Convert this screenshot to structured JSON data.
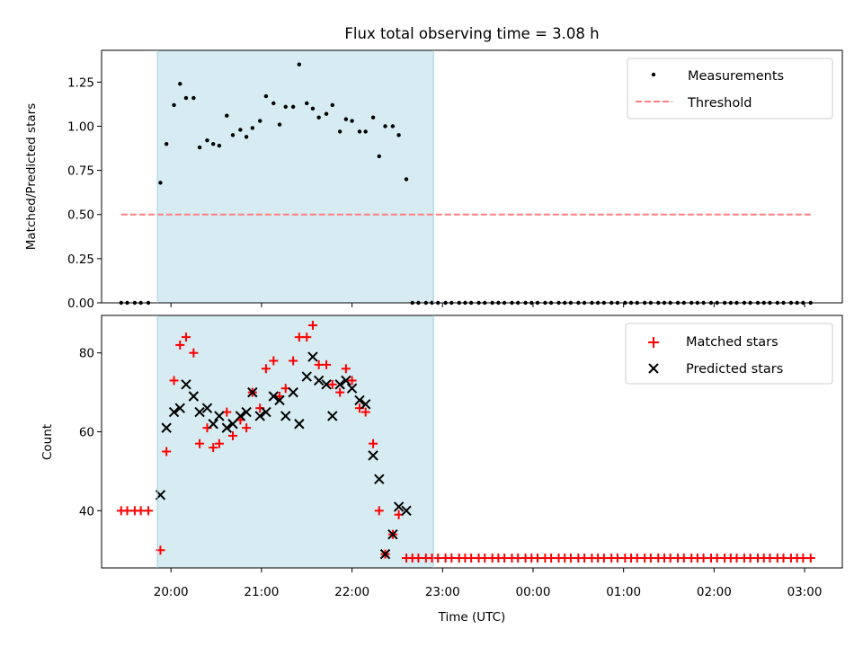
{
  "chart_data": [
    {
      "type": "scatter",
      "title": "Flux total observing time = 3.08 h",
      "ylabel": "Matched/Predicted stars",
      "xlabel": "",
      "ylim": [
        0.0,
        1.43
      ],
      "yticks": [
        0.0,
        0.25,
        0.5,
        0.75,
        1.0,
        1.25
      ],
      "ytick_labels": [
        "0.00",
        "0.25",
        "0.50",
        "0.75",
        "1.00",
        "1.25"
      ],
      "xticks": [
        "20:00",
        "21:00",
        "22:00",
        "23:00",
        "00:00",
        "01:00",
        "02:00",
        "03:00"
      ],
      "xlim": [
        "19:14",
        "03:25"
      ],
      "shaded_span": {
        "start": "19:51",
        "end": "22:54",
        "color": "#add8e6"
      },
      "legend": {
        "position": "top-right",
        "entries": [
          "Measurements",
          "Threshold"
        ]
      },
      "series": [
        {
          "name": "Measurements",
          "marker": "dot",
          "color": "#000000",
          "points": [
            [
              "19:27",
              0.0
            ],
            [
              "19:31",
              0.0
            ],
            [
              "19:36",
              0.0
            ],
            [
              "19:40",
              0.0
            ],
            [
              "19:45",
              0.0
            ],
            [
              "19:53",
              0.68
            ],
            [
              "19:57",
              0.9
            ],
            [
              "20:02",
              1.12
            ],
            [
              "20:06",
              1.24
            ],
            [
              "20:10",
              1.16
            ],
            [
              "20:15",
              1.16
            ],
            [
              "20:19",
              0.88
            ],
            [
              "20:24",
              0.92
            ],
            [
              "20:28",
              0.9
            ],
            [
              "20:32",
              0.89
            ],
            [
              "20:37",
              1.06
            ],
            [
              "20:41",
              0.95
            ],
            [
              "20:46",
              0.98
            ],
            [
              "20:50",
              0.94
            ],
            [
              "20:54",
              0.99
            ],
            [
              "20:59",
              1.03
            ],
            [
              "21:03",
              1.17
            ],
            [
              "21:08",
              1.13
            ],
            [
              "21:12",
              1.01
            ],
            [
              "21:16",
              1.11
            ],
            [
              "21:21",
              1.11
            ],
            [
              "21:25",
              1.35
            ],
            [
              "21:30",
              1.13
            ],
            [
              "21:34",
              1.1
            ],
            [
              "21:38",
              1.05
            ],
            [
              "21:43",
              1.07
            ],
            [
              "21:47",
              1.12
            ],
            [
              "21:52",
              0.97
            ],
            [
              "21:56",
              1.04
            ],
            [
              "22:00",
              1.03
            ],
            [
              "22:05",
              0.97
            ],
            [
              "22:09",
              0.97
            ],
            [
              "22:14",
              1.05
            ],
            [
              "22:18",
              0.83
            ],
            [
              "22:22",
              1.0
            ],
            [
              "22:27",
              1.0
            ],
            [
              "22:31",
              0.95
            ],
            [
              "22:36",
              0.7
            ],
            [
              "22:40",
              0.0
            ],
            [
              "22:44",
              0.0
            ],
            [
              "22:49",
              0.0
            ],
            [
              "22:53",
              0.0
            ],
            [
              "22:57",
              0.0
            ],
            [
              "23:02",
              0.0
            ],
            [
              "23:06",
              0.0
            ],
            [
              "23:11",
              0.0
            ],
            [
              "23:15",
              0.0
            ],
            [
              "23:19",
              0.0
            ],
            [
              "23:24",
              0.0
            ],
            [
              "23:28",
              0.0
            ],
            [
              "23:33",
              0.0
            ],
            [
              "23:37",
              0.0
            ],
            [
              "23:41",
              0.0
            ],
            [
              "23:46",
              0.0
            ],
            [
              "23:50",
              0.0
            ],
            [
              "23:55",
              0.0
            ],
            [
              "23:59",
              0.0
            ],
            [
              "00:03",
              0.0
            ],
            [
              "00:08",
              0.0
            ],
            [
              "00:12",
              0.0
            ],
            [
              "00:17",
              0.0
            ],
            [
              "00:21",
              0.0
            ],
            [
              "00:25",
              0.0
            ],
            [
              "00:30",
              0.0
            ],
            [
              "00:34",
              0.0
            ],
            [
              "00:39",
              0.0
            ],
            [
              "00:43",
              0.0
            ],
            [
              "00:47",
              0.0
            ],
            [
              "00:52",
              0.0
            ],
            [
              "00:56",
              0.0
            ],
            [
              "01:01",
              0.0
            ],
            [
              "01:05",
              0.0
            ],
            [
              "01:09",
              0.0
            ],
            [
              "01:14",
              0.0
            ],
            [
              "01:18",
              0.0
            ],
            [
              "01:23",
              0.0
            ],
            [
              "01:27",
              0.0
            ],
            [
              "01:31",
              0.0
            ],
            [
              "01:36",
              0.0
            ],
            [
              "01:40",
              0.0
            ],
            [
              "01:45",
              0.0
            ],
            [
              "01:49",
              0.0
            ],
            [
              "01:53",
              0.0
            ],
            [
              "01:58",
              0.0
            ],
            [
              "02:02",
              0.0
            ],
            [
              "02:07",
              0.0
            ],
            [
              "02:11",
              0.0
            ],
            [
              "02:15",
              0.0
            ],
            [
              "02:20",
              0.0
            ],
            [
              "02:24",
              0.0
            ],
            [
              "02:29",
              0.0
            ],
            [
              "02:33",
              0.0
            ],
            [
              "02:37",
              0.0
            ],
            [
              "02:42",
              0.0
            ],
            [
              "02:46",
              0.0
            ],
            [
              "02:51",
              0.0
            ],
            [
              "02:55",
              0.0
            ],
            [
              "02:59",
              0.0
            ],
            [
              "03:04",
              0.0
            ]
          ]
        },
        {
          "name": "Threshold",
          "marker": "dashed-line",
          "color": "#ff7f7f",
          "points": [
            [
              "19:27",
              0.5
            ],
            [
              "03:04",
              0.5
            ]
          ]
        }
      ]
    },
    {
      "type": "scatter",
      "title": "",
      "ylabel": "Count",
      "xlabel": "Time (UTC)",
      "ylim": [
        25.5,
        89.5
      ],
      "yticks": [
        40,
        60,
        80
      ],
      "ytick_labels": [
        "40",
        "60",
        "80"
      ],
      "xticks": [
        "20:00",
        "21:00",
        "22:00",
        "23:00",
        "00:00",
        "01:00",
        "02:00",
        "03:00"
      ],
      "xtick_labels": [
        "20:00",
        "21:00",
        "22:00",
        "23:00",
        "00:00",
        "01:00",
        "02:00",
        "03:00"
      ],
      "xlim": [
        "19:14",
        "03:25"
      ],
      "shaded_span": {
        "start": "19:51",
        "end": "22:54",
        "color": "#add8e6"
      },
      "legend": {
        "position": "top-right",
        "entries": [
          "Matched stars",
          "Predicted stars"
        ]
      },
      "series": [
        {
          "name": "Matched stars",
          "marker": "plus",
          "color": "#ff0000",
          "points": [
            [
              "19:27",
              40
            ],
            [
              "19:31",
              40
            ],
            [
              "19:36",
              40
            ],
            [
              "19:40",
              40
            ],
            [
              "19:45",
              40
            ],
            [
              "19:53",
              30
            ],
            [
              "19:57",
              55
            ],
            [
              "20:02",
              73
            ],
            [
              "20:06",
              82
            ],
            [
              "20:10",
              84
            ],
            [
              "20:15",
              80
            ],
            [
              "20:19",
              57
            ],
            [
              "20:24",
              61
            ],
            [
              "20:28",
              56
            ],
            [
              "20:32",
              57
            ],
            [
              "20:37",
              65
            ],
            [
              "20:41",
              59
            ],
            [
              "20:46",
              63
            ],
            [
              "20:50",
              61
            ],
            [
              "20:54",
              70
            ],
            [
              "20:59",
              66
            ],
            [
              "21:03",
              76
            ],
            [
              "21:08",
              78
            ],
            [
              "21:12",
              69
            ],
            [
              "21:16",
              71
            ],
            [
              "21:21",
              78
            ],
            [
              "21:25",
              84
            ],
            [
              "21:30",
              84
            ],
            [
              "21:34",
              87
            ],
            [
              "21:38",
              77
            ],
            [
              "21:43",
              77
            ],
            [
              "21:47",
              72
            ],
            [
              "21:52",
              70
            ],
            [
              "21:56",
              76
            ],
            [
              "22:00",
              73
            ],
            [
              "22:05",
              66
            ],
            [
              "22:09",
              65
            ],
            [
              "22:14",
              57
            ],
            [
              "22:18",
              40
            ],
            [
              "22:22",
              29
            ],
            [
              "22:27",
              34
            ],
            [
              "22:31",
              39
            ],
            [
              "22:36",
              28
            ],
            [
              "22:40",
              28
            ],
            [
              "22:44",
              28
            ],
            [
              "22:49",
              28
            ],
            [
              "22:53",
              28
            ],
            [
              "22:57",
              28
            ],
            [
              "23:02",
              28
            ],
            [
              "23:06",
              28
            ],
            [
              "23:11",
              28
            ],
            [
              "23:15",
              28
            ],
            [
              "23:19",
              28
            ],
            [
              "23:24",
              28
            ],
            [
              "23:28",
              28
            ],
            [
              "23:33",
              28
            ],
            [
              "23:37",
              28
            ],
            [
              "23:41",
              28
            ],
            [
              "23:46",
              28
            ],
            [
              "23:50",
              28
            ],
            [
              "23:55",
              28
            ],
            [
              "23:59",
              28
            ],
            [
              "00:03",
              28
            ],
            [
              "00:08",
              28
            ],
            [
              "00:12",
              28
            ],
            [
              "00:17",
              28
            ],
            [
              "00:21",
              28
            ],
            [
              "00:25",
              28
            ],
            [
              "00:30",
              28
            ],
            [
              "00:34",
              28
            ],
            [
              "00:39",
              28
            ],
            [
              "00:43",
              28
            ],
            [
              "00:47",
              28
            ],
            [
              "00:52",
              28
            ],
            [
              "00:56",
              28
            ],
            [
              "01:01",
              28
            ],
            [
              "01:05",
              28
            ],
            [
              "01:09",
              28
            ],
            [
              "01:14",
              28
            ],
            [
              "01:18",
              28
            ],
            [
              "01:23",
              28
            ],
            [
              "01:27",
              28
            ],
            [
              "01:31",
              28
            ],
            [
              "01:36",
              28
            ],
            [
              "01:40",
              28
            ],
            [
              "01:45",
              28
            ],
            [
              "01:49",
              28
            ],
            [
              "01:53",
              28
            ],
            [
              "01:58",
              28
            ],
            [
              "02:02",
              28
            ],
            [
              "02:07",
              28
            ],
            [
              "02:11",
              28
            ],
            [
              "02:15",
              28
            ],
            [
              "02:20",
              28
            ],
            [
              "02:24",
              28
            ],
            [
              "02:29",
              28
            ],
            [
              "02:33",
              28
            ],
            [
              "02:37",
              28
            ],
            [
              "02:42",
              28
            ],
            [
              "02:46",
              28
            ],
            [
              "02:51",
              28
            ],
            [
              "02:55",
              28
            ],
            [
              "02:59",
              28
            ],
            [
              "03:04",
              28
            ]
          ]
        },
        {
          "name": "Predicted stars",
          "marker": "x",
          "color": "#000000",
          "points": [
            [
              "19:53",
              44
            ],
            [
              "19:57",
              61
            ],
            [
              "20:02",
              65
            ],
            [
              "20:06",
              66
            ],
            [
              "20:10",
              72
            ],
            [
              "20:15",
              69
            ],
            [
              "20:19",
              65
            ],
            [
              "20:24",
              66
            ],
            [
              "20:28",
              62
            ],
            [
              "20:32",
              64
            ],
            [
              "20:37",
              61
            ],
            [
              "20:41",
              62
            ],
            [
              "20:46",
              64
            ],
            [
              "20:50",
              65
            ],
            [
              "20:54",
              70
            ],
            [
              "20:59",
              64
            ],
            [
              "21:03",
              65
            ],
            [
              "21:08",
              69
            ],
            [
              "21:12",
              68
            ],
            [
              "21:16",
              64
            ],
            [
              "21:21",
              70
            ],
            [
              "21:25",
              62
            ],
            [
              "21:30",
              74
            ],
            [
              "21:34",
              79
            ],
            [
              "21:38",
              73
            ],
            [
              "21:43",
              72
            ],
            [
              "21:47",
              64
            ],
            [
              "21:52",
              72
            ],
            [
              "21:56",
              73
            ],
            [
              "22:00",
              71
            ],
            [
              "22:05",
              68
            ],
            [
              "22:09",
              67
            ],
            [
              "22:14",
              54
            ],
            [
              "22:18",
              48
            ],
            [
              "22:22",
              29
            ],
            [
              "22:27",
              34
            ],
            [
              "22:31",
              41
            ],
            [
              "22:36",
              40
            ]
          ]
        }
      ]
    }
  ]
}
